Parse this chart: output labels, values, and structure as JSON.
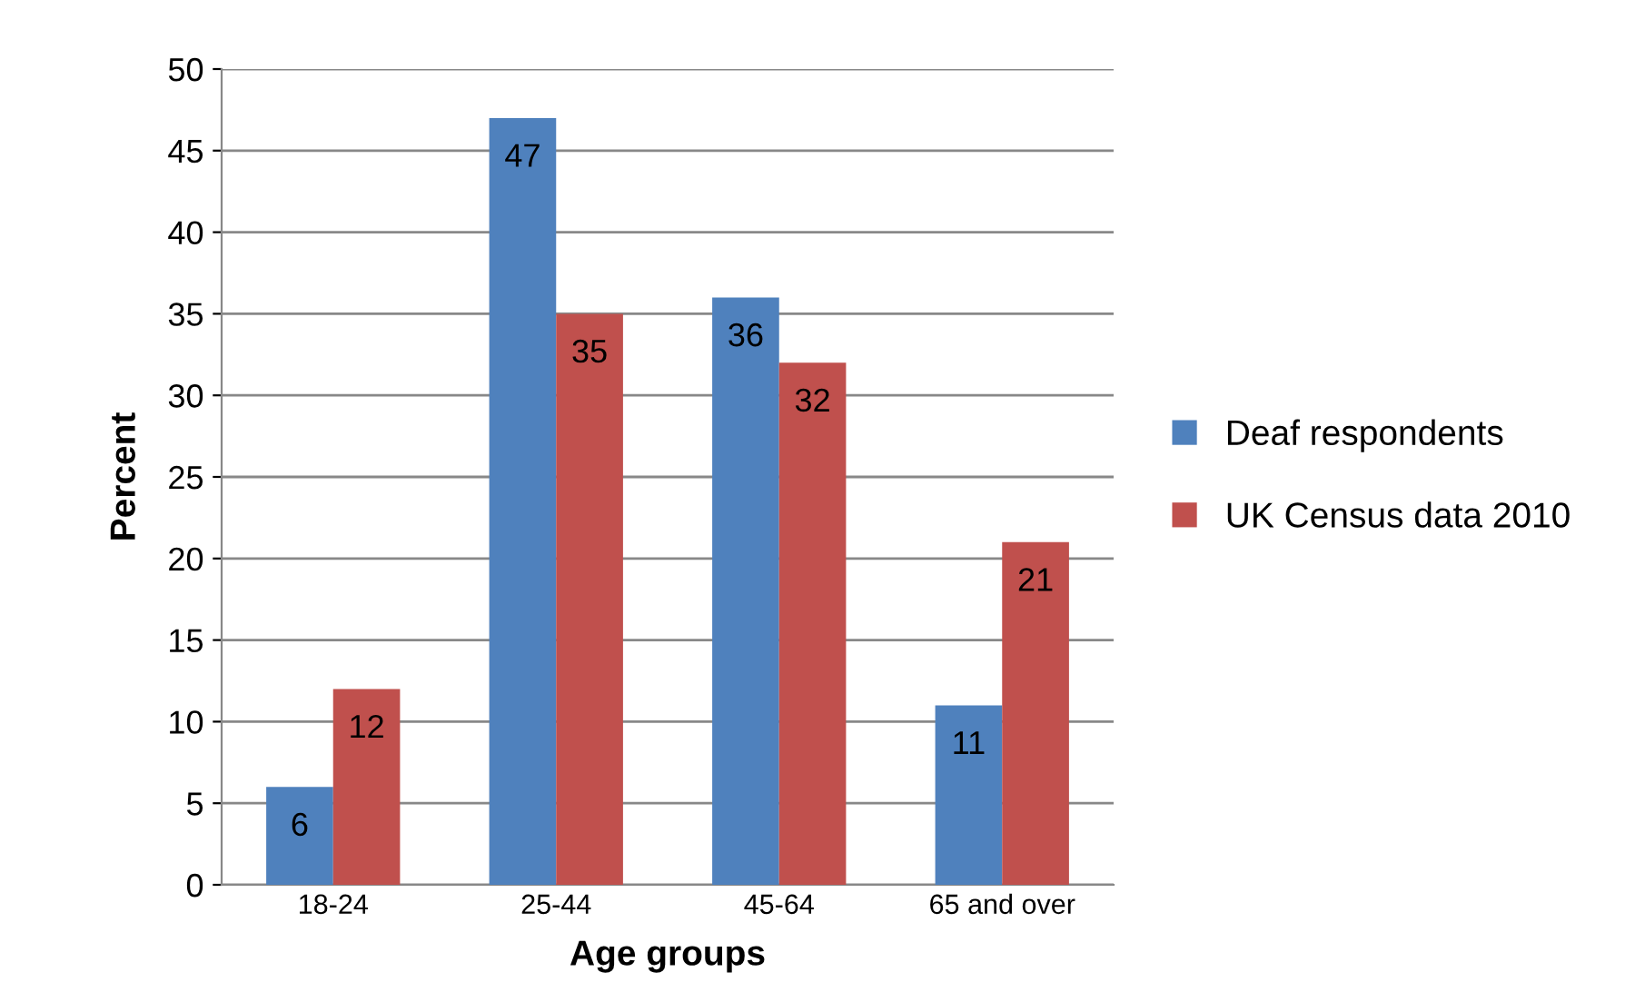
{
  "chart_data": {
    "type": "bar",
    "xlabel": "Age groups",
    "ylabel": "Percent",
    "categories": [
      "18-24",
      "25-44",
      "45-64",
      "65 and over"
    ],
    "series": [
      {
        "name": "Deaf respondents",
        "color": "#4f81bd",
        "values": [
          6,
          47,
          36,
          11
        ]
      },
      {
        "name": "UK Census data 2010",
        "color": "#c0504d",
        "values": [
          12,
          35,
          32,
          21
        ]
      }
    ],
    "ylim": [
      0,
      50
    ],
    "yticks": [
      0,
      5,
      10,
      15,
      20,
      25,
      30,
      35,
      40,
      45,
      50
    ],
    "grid": "y",
    "legend": "right",
    "data_labels": true
  }
}
